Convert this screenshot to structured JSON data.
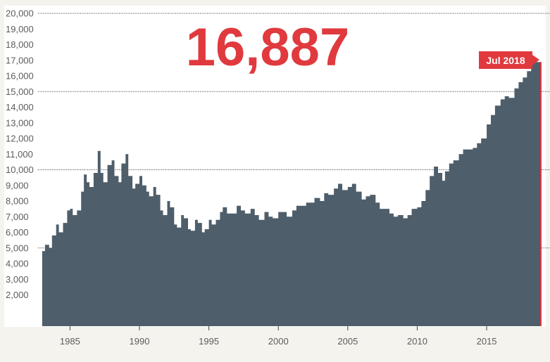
{
  "headline": {
    "value": "16,887"
  },
  "badge": {
    "label": "Jul 2018"
  },
  "colors": {
    "area": "#4e5e6a",
    "accent": "#e03a3e",
    "background": "#f4f3ee",
    "plot_background": "#ffffff"
  },
  "chart_data": {
    "type": "area",
    "title": "",
    "xlabel": "",
    "ylabel": "",
    "xlim": [
      1982.8,
      2018.9
    ],
    "ylim": [
      0,
      20000
    ],
    "y_ticks": [
      {
        "value": 2000,
        "label": "2,000"
      },
      {
        "value": 3000,
        "label": "3,000"
      },
      {
        "value": 4000,
        "label": "4,000"
      },
      {
        "value": 5000,
        "label": "5,000"
      },
      {
        "value": 6000,
        "label": "6,000"
      },
      {
        "value": 7000,
        "label": "7,000"
      },
      {
        "value": 8000,
        "label": "8,000"
      },
      {
        "value": 9000,
        "label": "9,000"
      },
      {
        "value": 10000,
        "label": "10,000"
      },
      {
        "value": 11000,
        "label": "11,000"
      },
      {
        "value": 12000,
        "label": "12,000"
      },
      {
        "value": 13000,
        "label": "13,000"
      },
      {
        "value": 14000,
        "label": "14,000"
      },
      {
        "value": 15000,
        "label": "15,000"
      },
      {
        "value": 16000,
        "label": "16,000"
      },
      {
        "value": 17000,
        "label": "17,000"
      },
      {
        "value": 18000,
        "label": "18,000"
      },
      {
        "value": 19000,
        "label": "19,000"
      },
      {
        "value": 20000,
        "label": "20,000"
      }
    ],
    "x_ticks": [
      {
        "value": 1985,
        "label": "1985"
      },
      {
        "value": 1990,
        "label": "1990"
      },
      {
        "value": 1995,
        "label": "1995"
      },
      {
        "value": 2000,
        "label": "2000"
      },
      {
        "value": 2005,
        "label": "2005"
      },
      {
        "value": 2010,
        "label": "2010"
      },
      {
        "value": 2015,
        "label": "2015"
      }
    ],
    "reference_lines": [
      5000,
      10000,
      15000,
      20000
    ],
    "series": [
      {
        "x": [
          1983.0,
          1983.2,
          1983.5,
          1983.7,
          1984.0,
          1984.2,
          1984.5,
          1984.8,
          1985.0,
          1985.2,
          1985.5,
          1985.8,
          1986.0,
          1986.2,
          1986.4,
          1986.7,
          1987.0,
          1987.2,
          1987.4,
          1987.7,
          1988.0,
          1988.2,
          1988.5,
          1988.7,
          1989.0,
          1989.2,
          1989.5,
          1989.7,
          1990.0,
          1990.2,
          1990.5,
          1990.7,
          1991.0,
          1991.2,
          1991.5,
          1991.7,
          1992.0,
          1992.2,
          1992.5,
          1992.7,
          1993.0,
          1993.2,
          1993.5,
          1993.7,
          1994.0,
          1994.2,
          1994.5,
          1994.7,
          1995.0,
          1995.2,
          1995.5,
          1995.8,
          1996.0,
          1996.3,
          1996.6,
          1997.0,
          1997.3,
          1997.6,
          1998.0,
          1998.3,
          1998.6,
          1999.0,
          1999.3,
          1999.6,
          2000.0,
          2000.3,
          2000.6,
          2001.0,
          2001.3,
          2001.6,
          2002.0,
          2002.3,
          2002.6,
          2003.0,
          2003.3,
          2003.6,
          2004.0,
          2004.3,
          2004.6,
          2005.0,
          2005.3,
          2005.6,
          2006.0,
          2006.3,
          2006.6,
          2007.0,
          2007.3,
          2007.6,
          2008.0,
          2008.3,
          2008.6,
          2009.0,
          2009.3,
          2009.6,
          2010.0,
          2010.3,
          2010.6,
          2010.9,
          2011.2,
          2011.5,
          2011.8,
          2012.0,
          2012.3,
          2012.6,
          2013.0,
          2013.3,
          2013.6,
          2014.0,
          2014.3,
          2014.6,
          2015.0,
          2015.3,
          2015.6,
          2016.0,
          2016.3,
          2016.6,
          2017.0,
          2017.3,
          2017.6,
          2017.9,
          2018.2,
          2018.5
        ],
        "values": [
          4800,
          5200,
          5000,
          5800,
          6500,
          6000,
          6600,
          7400,
          7500,
          7100,
          7400,
          8600,
          9700,
          9200,
          8900,
          9800,
          11200,
          9800,
          9200,
          10300,
          10600,
          9600,
          9200,
          10400,
          11000,
          9600,
          8800,
          9100,
          9600,
          9000,
          8600,
          8300,
          8900,
          8400,
          7400,
          7100,
          8000,
          7600,
          6500,
          6300,
          7100,
          6900,
          6200,
          6100,
          6800,
          6600,
          6000,
          6200,
          6800,
          6500,
          6800,
          7300,
          7600,
          7200,
          7200,
          7700,
          7400,
          7200,
          7500,
          7100,
          6800,
          7300,
          7000,
          6900,
          7300,
          7300,
          7000,
          7400,
          7700,
          7700,
          7900,
          7900,
          8200,
          8000,
          8500,
          8400,
          8800,
          9100,
          8700,
          8900,
          9100,
          8600,
          8100,
          8300,
          8400,
          7900,
          7500,
          7500,
          7200,
          7000,
          7100,
          6900,
          7100,
          7500,
          7600,
          8000,
          8700,
          9600,
          10200,
          9800,
          9300,
          9900,
          10400,
          10600,
          11000,
          11300,
          11300,
          11400,
          11700,
          12000,
          12900,
          13500,
          14100,
          14500,
          14700,
          14600,
          15200,
          15600,
          15900,
          16300,
          16887,
          16887
        ]
      }
    ]
  }
}
